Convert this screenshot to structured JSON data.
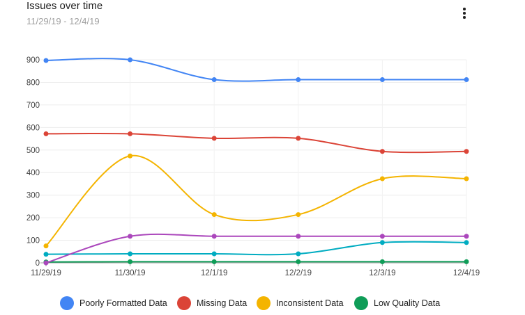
{
  "header": {
    "title": "Issues over time",
    "subtitle": "11/29/19 - 12/4/19",
    "menu_icon": "kebab-menu-icon"
  },
  "chart_data": {
    "type": "line",
    "title": "Issues over time",
    "subtitle": "11/29/19 - 12/4/19",
    "xlabel": "",
    "ylabel": "",
    "categories": [
      "11/29/19",
      "11/30/19",
      "12/1/19",
      "12/2/19",
      "12/3/19",
      "12/4/19"
    ],
    "ylim": [
      0,
      900
    ],
    "yticks": [
      0,
      100,
      200,
      300,
      400,
      500,
      600,
      700,
      800,
      900
    ],
    "grid": true,
    "smooth": true,
    "legend_position": "bottom",
    "series": [
      {
        "name": "Poorly Formatted Data",
        "color": "#4285f4",
        "values": [
          897,
          900,
          812,
          812,
          812,
          812
        ]
      },
      {
        "name": "Missing Data",
        "color": "#db4437",
        "values": [
          572,
          572,
          552,
          552,
          494,
          494
        ]
      },
      {
        "name": "Inconsistent Data",
        "color": "#f4b400",
        "values": [
          75,
          474,
          214,
          214,
          373,
          373
        ]
      },
      {
        "name": "Low Quality Data",
        "color": "#0f9d58",
        "values": [
          4,
          5,
          5,
          5,
          5,
          5
        ]
      },
      {
        "name": "",
        "color": "#ab47bc",
        "values": [
          0,
          118,
          118,
          118,
          118,
          118
        ]
      },
      {
        "name": "",
        "color": "#00acc1",
        "values": [
          38,
          40,
          40,
          40,
          90,
          90
        ]
      }
    ]
  }
}
